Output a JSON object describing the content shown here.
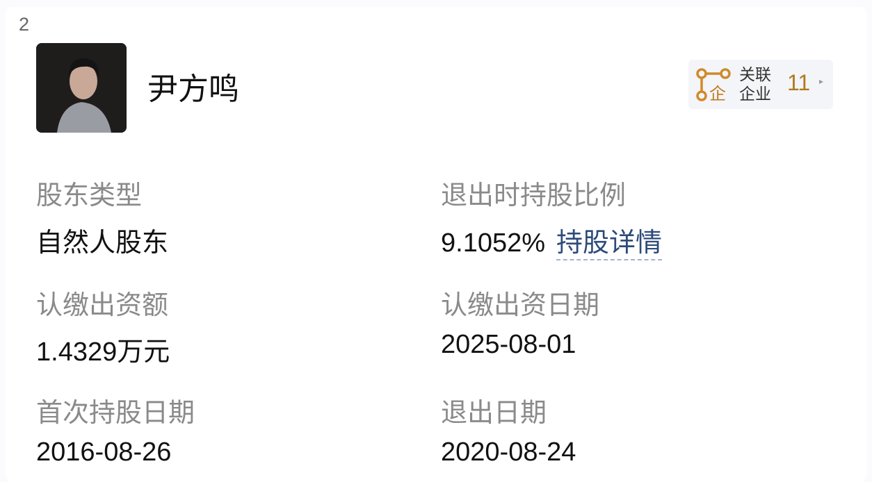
{
  "index": "2",
  "person": {
    "name": "尹方鸣"
  },
  "related": {
    "label_line1": "关联",
    "label_line2": "企业",
    "count": "11",
    "icon": "related-company-icon",
    "color": "#b07a1e"
  },
  "fields": [
    {
      "label": "股东类型",
      "value": "自然人股东"
    },
    {
      "label": "退出时持股比例",
      "value": "9.1052%",
      "link": "持股详情"
    },
    {
      "label": "认缴出资额",
      "value": "1.4329万元"
    },
    {
      "label": "认缴出资日期",
      "value": "2025-08-01"
    },
    {
      "label": "首次持股日期",
      "value": "2016-08-26"
    },
    {
      "label": "退出日期",
      "value": "2020-08-24"
    }
  ]
}
